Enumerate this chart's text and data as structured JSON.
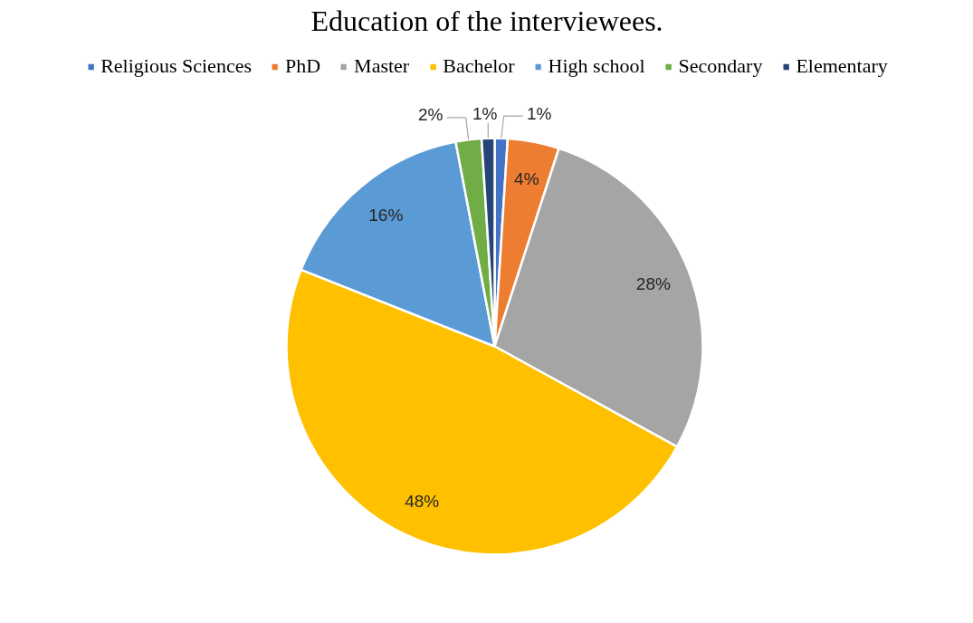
{
  "chart_data": {
    "type": "pie",
    "title": "Education of the interviewees.",
    "categories": [
      "Religious Sciences",
      "PhD",
      "Master",
      "Bachelor",
      "High school",
      "Secondary",
      "Elementary"
    ],
    "values": [
      1,
      4,
      28,
      48,
      16,
      2,
      1
    ],
    "colors": [
      "#4472c4",
      "#ed7d31",
      "#a5a5a5",
      "#ffc000",
      "#5b9bd5",
      "#70ad47",
      "#264478"
    ],
    "value_labels": [
      "1%",
      "4%",
      "28%",
      "48%",
      "16%",
      "2%",
      "1%"
    ],
    "legend": "top"
  }
}
